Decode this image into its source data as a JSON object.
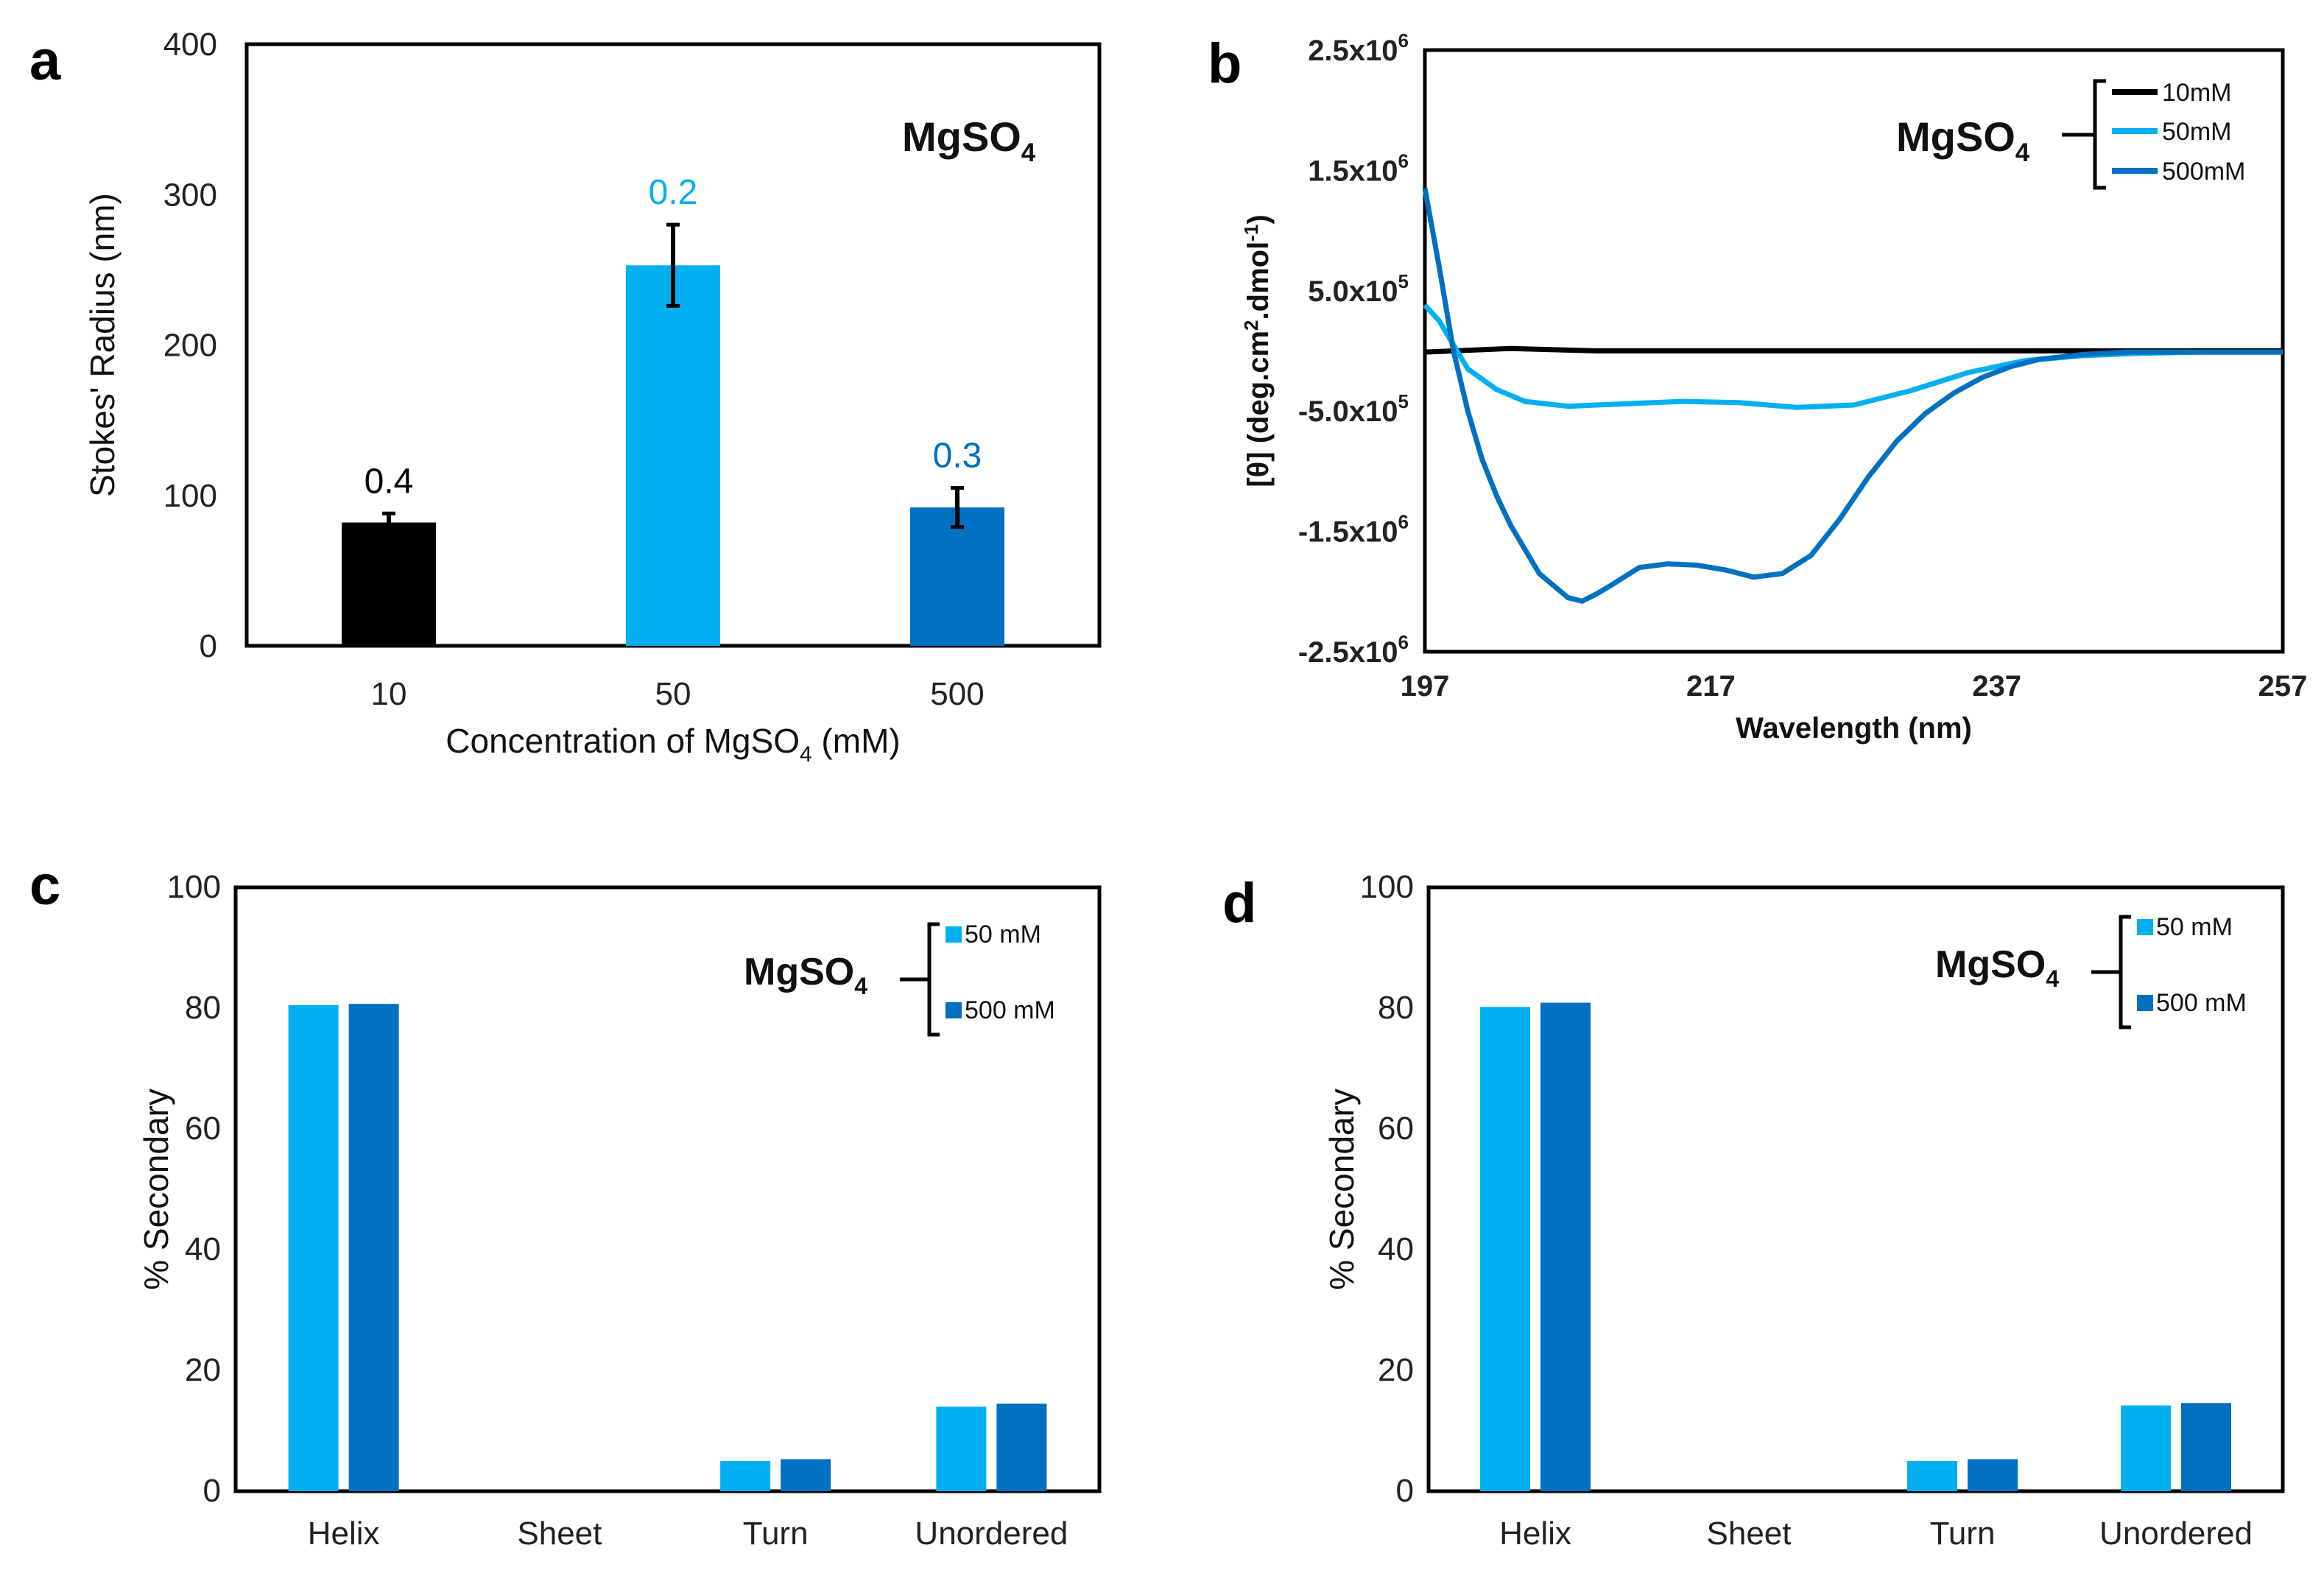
{
  "panels": {
    "a": "a",
    "b": "b",
    "c": "c",
    "d": "d"
  },
  "salt": {
    "base": "MgSO",
    "sub": "4"
  },
  "colors": {
    "c10": "#000000",
    "c50": "#00B0F0",
    "c500": "#0070C0"
  },
  "chart_data": [
    {
      "id": "a",
      "type": "bar",
      "title": "MgSO4",
      "categories": [
        "10",
        "50",
        "500"
      ],
      "values": [
        82,
        253,
        92
      ],
      "errors": [
        6,
        27,
        13
      ],
      "data_labels": [
        "0.4",
        "0.2",
        "0.3"
      ],
      "colors": [
        "#000000",
        "#00B0F0",
        "#0070C0"
      ],
      "ylabel": "Stokes' Radius (nm)",
      "xlabel": {
        "pre": "Concentration of MgSO",
        "sub": "4",
        "post": " (mM)"
      },
      "ylim": [
        0,
        400
      ],
      "yticks": [
        "0",
        "100",
        "200",
        "300",
        "400"
      ]
    },
    {
      "id": "b",
      "type": "line",
      "title": "MgSO4",
      "xlabel": "Wavelength (nm)",
      "ylabel": {
        "text": "[θ] (deg.cm",
        "sup1": "2",
        "mid": ".dmol",
        "sup2": "-1",
        "end": ")"
      },
      "xlim": [
        197,
        257
      ],
      "ylim": [
        -2500000,
        2500000
      ],
      "xticks": [
        "197",
        "217",
        "237",
        "257"
      ],
      "yticks": [
        {
          "base": "2.5x10",
          "exp": "6",
          "value": 2500000
        },
        {
          "base": "1.5x10",
          "exp": "6",
          "value": 1500000
        },
        {
          "base": "5.0x10",
          "exp": "5",
          "value": 500000
        },
        {
          "base": "-5.0x10",
          "exp": "5",
          "value": -500000
        },
        {
          "base": "-1.5x10",
          "exp": "6",
          "value": -1500000
        },
        {
          "base": "-2.5x10",
          "exp": "6",
          "value": -2500000
        }
      ],
      "series": [
        {
          "name": "10mM",
          "color": "#000000",
          "x": [
            197,
            203,
            209,
            215,
            221,
            227,
            233,
            239,
            245,
            251,
            257
          ],
          "y": [
            -10000,
            20000,
            0,
            0,
            0,
            0,
            0,
            0,
            0,
            0,
            0
          ]
        },
        {
          "name": "50mM",
          "color": "#00B0F0",
          "x": [
            197,
            198,
            199,
            200,
            202,
            204,
            207,
            211,
            215,
            219,
            223,
            227,
            231,
            235,
            239,
            243,
            247,
            251,
            257
          ],
          "y": [
            380000,
            250000,
            50000,
            -150000,
            -320000,
            -420000,
            -460000,
            -440000,
            -420000,
            -430000,
            -470000,
            -450000,
            -330000,
            -180000,
            -80000,
            -40000,
            -20000,
            -10000,
            -10000
          ]
        },
        {
          "name": "500mM",
          "color": "#0070C0",
          "x": [
            197,
            198,
            199,
            200,
            201,
            202,
            203,
            205,
            207,
            208,
            209,
            210,
            212,
            214,
            216,
            218,
            220,
            222,
            224,
            226,
            228,
            230,
            232,
            234,
            236,
            238,
            240,
            243,
            246,
            250,
            257
          ],
          "y": [
            1350000,
            700000,
            0,
            -500000,
            -900000,
            -1200000,
            -1450000,
            -1850000,
            -2050000,
            -2080000,
            -2020000,
            -1950000,
            -1800000,
            -1770000,
            -1780000,
            -1820000,
            -1880000,
            -1850000,
            -1700000,
            -1400000,
            -1050000,
            -750000,
            -520000,
            -350000,
            -220000,
            -130000,
            -70000,
            -30000,
            -10000,
            -10000,
            -10000
          ]
        }
      ]
    },
    {
      "id": "c",
      "type": "bar",
      "title": "MgSO4",
      "categories": [
        "Helix",
        "Sheet",
        "Turn",
        "Unordered"
      ],
      "series": [
        {
          "name": "50 mM",
          "color": "#00B0F0",
          "values": [
            80.5,
            0,
            5,
            14
          ]
        },
        {
          "name": "500 mM",
          "color": "#0070C0",
          "values": [
            80.7,
            0,
            5.3,
            14.5
          ]
        }
      ],
      "ylabel": "% Secondary",
      "ylim": [
        0,
        100
      ],
      "yticks": [
        "0",
        "20",
        "40",
        "60",
        "80",
        "100"
      ]
    },
    {
      "id": "d",
      "type": "bar",
      "title": "MgSO4",
      "categories": [
        "Helix",
        "Sheet",
        "Turn",
        "Unordered"
      ],
      "series": [
        {
          "name": "50 mM",
          "color": "#00B0F0",
          "values": [
            80.2,
            0,
            5,
            14.2
          ]
        },
        {
          "name": "500 mM",
          "color": "#0070C0",
          "values": [
            80.9,
            0,
            5.3,
            14.6
          ]
        }
      ],
      "ylabel": "% Secondary",
      "ylim": [
        0,
        100
      ],
      "yticks": [
        "0",
        "20",
        "40",
        "60",
        "80",
        "100"
      ]
    }
  ]
}
